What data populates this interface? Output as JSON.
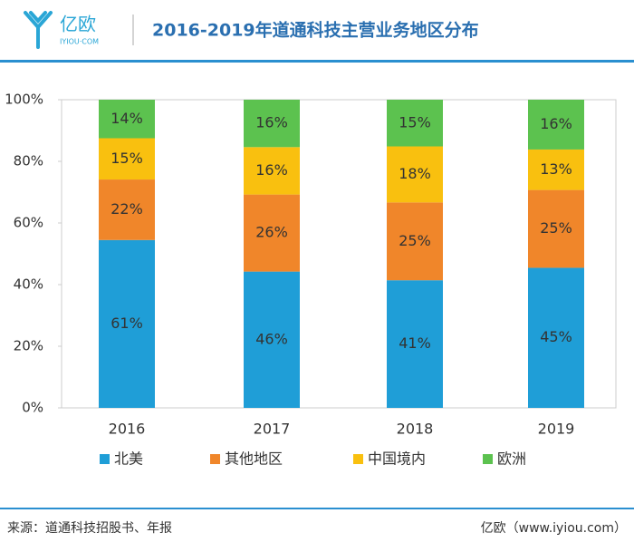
{
  "header": {
    "logo": "亿欧",
    "logo_sub": "IYIOU·COM"
  },
  "chart_data": {
    "type": "bar",
    "stack": "percent",
    "title": "2016-2019年道通科技主营业务地区分布",
    "categories": [
      "2016",
      "2017",
      "2018",
      "2019"
    ],
    "series": [
      {
        "name": "北美",
        "color": "#1f9ed7",
        "values": [
          61,
          46,
          41,
          45
        ],
        "value_labels": [
          "61%",
          "46%",
          "41%",
          "45%"
        ]
      },
      {
        "name": "其他地区",
        "color": "#f0862a",
        "values": [
          22,
          26,
          25,
          25
        ],
        "value_labels": [
          "22%",
          "26%",
          "25%",
          "25%"
        ]
      },
      {
        "name": "中国境内",
        "color": "#f9c00f",
        "values": [
          15,
          16,
          18,
          13
        ],
        "value_labels": [
          "15%",
          "16%",
          "18%",
          "13%"
        ]
      },
      {
        "name": "欧洲",
        "color": "#5cc24f",
        "values": [
          14,
          16,
          15,
          16
        ],
        "value_labels": [
          "14%",
          "16%",
          "15%",
          "16%"
        ]
      }
    ],
    "ylim": [
      0,
      100
    ],
    "yticks": [
      {
        "value": 0,
        "label": "0%"
      },
      {
        "value": 20,
        "label": "20%"
      },
      {
        "value": 40,
        "label": "40%"
      },
      {
        "value": 60,
        "label": "60%"
      },
      {
        "value": 80,
        "label": "80%"
      },
      {
        "value": 100,
        "label": "100%"
      }
    ],
    "grid": false
  },
  "footer": {
    "source": "来源：道通科技招股书、年报",
    "brand": "亿欧（www.iyiou.com）"
  }
}
